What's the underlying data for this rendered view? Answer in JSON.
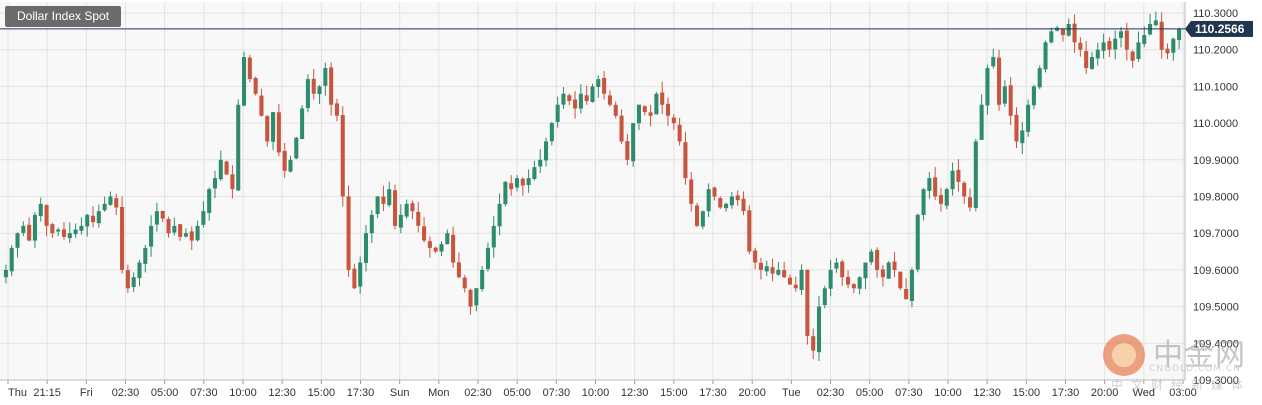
{
  "title": "Dollar Index Spot",
  "colors": {
    "up": "#2e8b6e",
    "down": "#c8553d",
    "grid": "#e3e3e3",
    "plot_bg": "#f8f8f8",
    "axis_text": "#333333",
    "current_line": "#1f3550",
    "current_label_bg": "#1f3550"
  },
  "current_price_label": "110.2566",
  "watermark": {
    "cn": "中金网",
    "en": "CNGOLD.COM.CN",
    "sub": "中文财经新媒体"
  },
  "chart_data": {
    "type": "candlestick",
    "title": "Dollar Index Spot",
    "ylim": [
      109.3,
      110.33
    ],
    "current_price": 110.2566,
    "y_ticks": [
      "110.3000",
      "110.2000",
      "110.1000",
      "110.0000",
      "109.9000",
      "109.8000",
      "109.7000",
      "109.6000",
      "109.5000",
      "109.4000",
      "109.3000"
    ],
    "x_ticks": [
      "Thu",
      "21:15",
      "Fri",
      "02:30",
      "05:00",
      "07:30",
      "10:00",
      "12:30",
      "15:00",
      "17:30",
      "Sun",
      "Mon",
      "02:30",
      "05:00",
      "07:30",
      "10:00",
      "12:30",
      "15:00",
      "17:30",
      "20:00",
      "Tue",
      "02:30",
      "05:00",
      "07:30",
      "10:00",
      "12:30",
      "15:00",
      "17:30",
      "20:00",
      "Wed",
      "03:00"
    ],
    "grid": true,
    "closes": [
      109.6,
      109.66,
      109.7,
      109.72,
      109.68,
      109.75,
      109.78,
      109.72,
      109.7,
      109.71,
      109.69,
      109.7,
      109.71,
      109.72,
      109.75,
      109.73,
      109.76,
      109.78,
      109.8,
      109.77,
      109.6,
      109.55,
      109.58,
      109.62,
      109.66,
      109.72,
      109.76,
      109.74,
      109.7,
      109.72,
      109.69,
      109.7,
      109.68,
      109.72,
      109.76,
      109.82,
      109.85,
      109.9,
      109.86,
      109.82,
      110.05,
      110.18,
      110.12,
      110.08,
      110.02,
      109.95,
      110.03,
      109.92,
      109.87,
      109.9,
      109.96,
      110.04,
      110.12,
      110.08,
      110.1,
      110.15,
      110.05,
      110.02,
      109.8,
      109.6,
      109.55,
      109.62,
      109.7,
      109.75,
      109.8,
      109.78,
      109.82,
      109.72,
      109.75,
      109.78,
      109.76,
      109.72,
      109.68,
      109.66,
      109.65,
      109.67,
      109.7,
      109.62,
      109.58,
      109.55,
      109.5,
      109.55,
      109.6,
      109.66,
      109.72,
      109.78,
      109.84,
      109.82,
      109.85,
      109.83,
      109.85,
      109.88,
      109.9,
      109.95,
      110.0,
      110.05,
      110.08,
      110.06,
      110.04,
      110.08,
      110.06,
      110.1,
      110.12,
      110.08,
      110.05,
      110.02,
      109.95,
      109.9,
      110.0,
      110.05,
      110.03,
      110.02,
      110.08,
      110.05,
      110.02,
      110.0,
      109.95,
      109.85,
      109.78,
      109.72,
      109.76,
      109.82,
      109.8,
      109.77,
      109.78,
      109.8,
      109.79,
      109.76,
      109.65,
      109.62,
      109.6,
      109.61,
      109.59,
      109.6,
      109.58,
      109.56,
      109.55,
      109.6,
      109.42,
      109.38,
      109.5,
      109.55,
      109.6,
      109.62,
      109.58,
      109.56,
      109.55,
      109.58,
      109.62,
      109.65,
      109.6,
      109.58,
      109.62,
      109.6,
      109.55,
      109.52,
      109.6,
      109.75,
      109.82,
      109.85,
      109.8,
      109.78,
      109.82,
      109.87,
      109.84,
      109.8,
      109.77,
      109.95,
      110.05,
      110.15,
      110.18,
      110.05,
      110.1,
      110.02,
      109.95,
      109.98,
      110.05,
      110.1,
      110.15,
      110.22,
      110.25,
      110.26,
      110.24,
      110.27,
      110.22,
      110.2,
      110.15,
      110.18,
      110.2,
      110.22,
      110.2,
      110.23,
      110.25,
      110.2,
      110.17,
      110.22,
      110.24,
      110.27,
      110.28,
      110.2,
      110.19,
      110.23,
      110.2566
    ],
    "opens_offset_seed": 7
  }
}
